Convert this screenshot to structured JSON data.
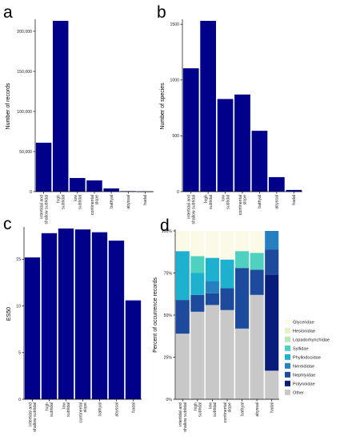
{
  "colors": {
    "bar": "#00008b",
    "other": "#c8c8c8",
    "Polynoidae": "#081d7a",
    "Nephtyidae": "#1d4a9c",
    "Nereididae": "#2680c0",
    "Phyllodocidae": "#1eb1cf",
    "Syllidae": "#4fd1bf",
    "Lopadorhynchidae": "#baeab4",
    "Hesionidae": "#e0f4c4",
    "Glyceridae": "#fafae6"
  },
  "chart_data": [
    {
      "panel": "a",
      "type": "bar",
      "title": "",
      "xlabel": "",
      "ylabel": "Number of records",
      "categories": [
        "intertidal and shallow subtidal",
        "high subtidal",
        "low subtidal",
        "continental slope",
        "bathyal",
        "abyssal",
        "hadal"
      ],
      "values": [
        61000,
        213000,
        17000,
        14000,
        4000,
        600,
        200
      ],
      "ylim": [
        0,
        213000
      ],
      "yticks": [
        0,
        50000,
        100000,
        150000,
        200000
      ],
      "ytick_labels": [
        "0",
        "50,000",
        "100,000",
        "150,000",
        "200,000"
      ]
    },
    {
      "panel": "b",
      "type": "bar",
      "title": "",
      "xlabel": "",
      "ylabel": "Number of species",
      "categories": [
        "intertidal and shallow subtidal",
        "high subtidal",
        "low subtidal",
        "continental slope",
        "bathyal",
        "abyssal",
        "hadal"
      ],
      "values": [
        1105,
        1530,
        830,
        870,
        545,
        130,
        15
      ],
      "ylim": [
        0,
        1530
      ],
      "yticks": [
        0,
        500,
        1000,
        1500
      ],
      "ytick_labels": [
        "0",
        "500",
        "1000",
        "1500"
      ]
    },
    {
      "panel": "c",
      "type": "bar",
      "title": "",
      "xlabel": "",
      "ylabel": "ES50",
      "categories": [
        "intertidal and shallow subtidal",
        "high subtidal",
        "low subtidal",
        "continental slope",
        "bathyal",
        "abyssal",
        "hadal"
      ],
      "values": [
        15.2,
        17.8,
        18.3,
        18.2,
        17.9,
        17.0,
        10.6
      ],
      "ylim": [
        0,
        18.3
      ],
      "yticks": [
        0,
        5,
        10,
        15
      ],
      "ytick_labels": [
        "0",
        "5",
        "10",
        "15"
      ]
    },
    {
      "panel": "d",
      "type": "bar",
      "stacked": true,
      "title": "",
      "xlabel": "",
      "ylabel": "Percent of occurrence records",
      "categories": [
        "intertidal and shallow subtidal",
        "high subtidal",
        "low subtidal",
        "continental slope",
        "bathyal",
        "abyssal",
        "hadal"
      ],
      "ylim": [
        0,
        100
      ],
      "yticks": [
        0,
        25,
        50,
        75,
        100
      ],
      "ytick_labels": [
        "0%",
        "25%",
        "50%",
        "75%",
        "100%"
      ],
      "series": [
        {
          "name": "Other",
          "values": [
            39,
            52,
            56,
            53,
            42,
            62,
            17
          ]
        },
        {
          "name": "Polynoidae",
          "values": [
            0,
            0,
            0,
            0,
            0,
            0,
            57
          ]
        },
        {
          "name": "Nephtyidae",
          "values": [
            20,
            10,
            7,
            13,
            36,
            15,
            15
          ]
        },
        {
          "name": "Nereididae",
          "values": [
            0,
            0,
            7,
            0,
            0,
            0,
            11
          ]
        },
        {
          "name": "Phyllodocidae",
          "values": [
            29,
            13,
            14,
            17,
            0,
            0,
            0
          ]
        },
        {
          "name": "Syllidae",
          "values": [
            0,
            10,
            0,
            0,
            10,
            10,
            0
          ]
        },
        {
          "name": "Lopadorhynchidae",
          "values": [
            0,
            0,
            0,
            0,
            0,
            0,
            0
          ]
        },
        {
          "name": "Hesionidae",
          "values": [
            0,
            0,
            0,
            0,
            0,
            0,
            0
          ]
        },
        {
          "name": "Glyceridae",
          "values": [
            12,
            15,
            16,
            17,
            12,
            13,
            0
          ]
        }
      ],
      "legend_order": [
        "Glyceridae",
        "Hesionidae",
        "Lopadorhynchidae",
        "Syllidae",
        "Phyllodocidae",
        "Nereididae",
        "Nephtyidae",
        "Polynoidae",
        "Other"
      ]
    }
  ]
}
